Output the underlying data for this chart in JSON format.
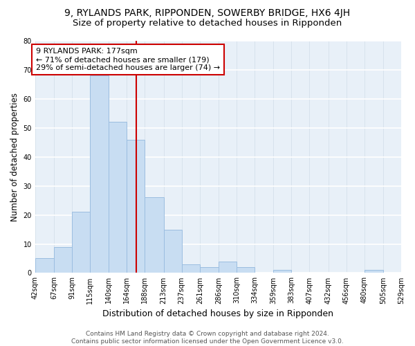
{
  "title1": "9, RYLANDS PARK, RIPPONDEN, SOWERBY BRIDGE, HX6 4JH",
  "title2": "Size of property relative to detached houses in Ripponden",
  "xlabel": "Distribution of detached houses by size in Ripponden",
  "ylabel": "Number of detached properties",
  "bar_color": "#c8ddf2",
  "bar_edge_color": "#9bbde0",
  "bg_color": "#e8f0f8",
  "grid_color": "#d0dce8",
  "bins": [
    42,
    67,
    91,
    115,
    140,
    164,
    188,
    213,
    237,
    261,
    286,
    310,
    334,
    359,
    383,
    407,
    432,
    456,
    480,
    505,
    529
  ],
  "counts": [
    5,
    9,
    21,
    68,
    52,
    46,
    26,
    15,
    3,
    2,
    4,
    2,
    0,
    1,
    0,
    0,
    0,
    0,
    1,
    0
  ],
  "tick_labels": [
    "42sqm",
    "67sqm",
    "91sqm",
    "115sqm",
    "140sqm",
    "164sqm",
    "188sqm",
    "213sqm",
    "237sqm",
    "261sqm",
    "286sqm",
    "310sqm",
    "334sqm",
    "359sqm",
    "383sqm",
    "407sqm",
    "432sqm",
    "456sqm",
    "480sqm",
    "505sqm",
    "529sqm"
  ],
  "vline_x": 177,
  "vline_color": "#cc0000",
  "annotation_text": "9 RYLANDS PARK: 177sqm\n← 71% of detached houses are smaller (179)\n29% of semi-detached houses are larger (74) →",
  "annotation_box_color": "#ffffff",
  "annotation_box_edge": "#cc0000",
  "ylim": [
    0,
    80
  ],
  "yticks": [
    0,
    10,
    20,
    30,
    40,
    50,
    60,
    70,
    80
  ],
  "footer": "Contains HM Land Registry data © Crown copyright and database right 2024.\nContains public sector information licensed under the Open Government Licence v3.0.",
  "title1_fontsize": 10,
  "title2_fontsize": 9.5,
  "xlabel_fontsize": 9,
  "ylabel_fontsize": 8.5,
  "tick_fontsize": 7,
  "annotation_fontsize": 8,
  "footer_fontsize": 6.5
}
